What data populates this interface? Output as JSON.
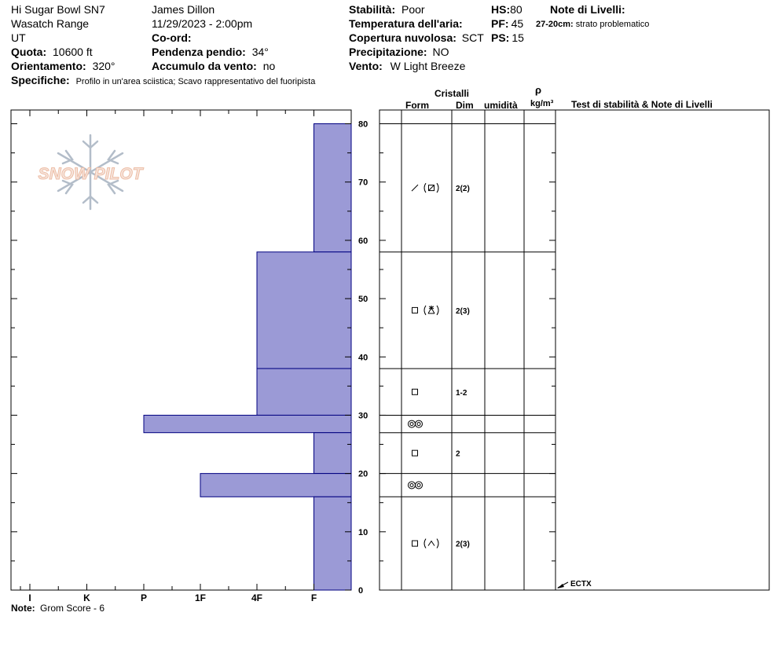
{
  "header": {
    "location": "Hi Sugar Bowl SN7",
    "range": "Wasatch Range",
    "state": "UT",
    "observer": "James Dillon",
    "datetime": "11/29/2023 - 2:00pm",
    "elevation_label": "Quota:",
    "elevation_value": "10600 ft",
    "aspect_label": "Orientamento:",
    "aspect_value": "320°",
    "coord_label": "Co-ord:",
    "slope_label": "Pendenza pendio:",
    "slope_value": "34°",
    "wind_loading_label": "Accumulo da vento:",
    "wind_loading_value": "no",
    "stability_label": "Stabilità:",
    "stability_value": "Poor",
    "air_temp_label": "Temperatura dell'aria:",
    "sky_label": "Copertura nuvolosa:",
    "sky_value": "SCT",
    "precip_label": "Precipitazione:",
    "precip_value": "NO",
    "wind_label": "Vento:",
    "wind_value": "W Light Breeze",
    "hs_label": "HS:",
    "hs_value": "80",
    "pf_label": "PF:",
    "pf_value": "45",
    "ps_label": "PS:",
    "ps_value": "15",
    "layer_notes_label": "Note di Livelli:",
    "layer_note_range": "27-20cm:",
    "layer_note_text": "strato problematico",
    "specifics_label": "Specifiche:",
    "specifics_value": "Profilo in un'area sciistica; Scavo rappresentativo del fuoripista"
  },
  "logo_text": "SNOW PILOT",
  "table_headers": {
    "crystals": "Cristalli",
    "form": "Form",
    "dim": "Dim",
    "moisture": "umidità",
    "rho": "ρ",
    "density_unit": "kg/m³",
    "tests": "Test di stabilità & Note di Livelli"
  },
  "footer": {
    "note_label": "Note:",
    "note_value": "Grom Score - 6"
  },
  "test_annotation": "ECTX",
  "colors": {
    "bar_fill": "#9b9ad6",
    "bar_stroke": "#000080"
  },
  "chart_data": {
    "type": "bar",
    "orientation": "horizontal",
    "x_axis": "hand hardness",
    "hardness_scale": [
      "F",
      "4F",
      "1F",
      "P",
      "K",
      "I"
    ],
    "x_tick_labels": [
      "I",
      "K",
      "P",
      "1F",
      "4F",
      "F"
    ],
    "ylim": [
      0,
      80
    ],
    "y_ticks": [
      0,
      10,
      20,
      30,
      40,
      50,
      60,
      70,
      80
    ],
    "grid": false,
    "layers": [
      {
        "top": 80,
        "bottom": 58,
        "hardness": "F",
        "form": "DF",
        "form_secondary": "PP",
        "size": "2",
        "size_secondary": "2"
      },
      {
        "top": 58,
        "bottom": 38,
        "hardness": "4F",
        "form": "FC",
        "form_secondary": "SH",
        "size": "2",
        "size_secondary": "3"
      },
      {
        "top": 38,
        "bottom": 30,
        "hardness": "4F",
        "form": "FC",
        "size": "1-2"
      },
      {
        "top": 30,
        "bottom": 27,
        "hardness": "P",
        "form": "MF"
      },
      {
        "top": 27,
        "bottom": 20,
        "hardness": "F",
        "form": "FC",
        "size": "2"
      },
      {
        "top": 20,
        "bottom": 16,
        "hardness": "1F",
        "form": "MF"
      },
      {
        "top": 16,
        "bottom": 0,
        "hardness": "F",
        "form": "FC",
        "form_secondary": "DH",
        "size": "2",
        "size_secondary": "3"
      }
    ],
    "tests": [
      {
        "depth": 1,
        "result": "ECTX"
      }
    ]
  }
}
